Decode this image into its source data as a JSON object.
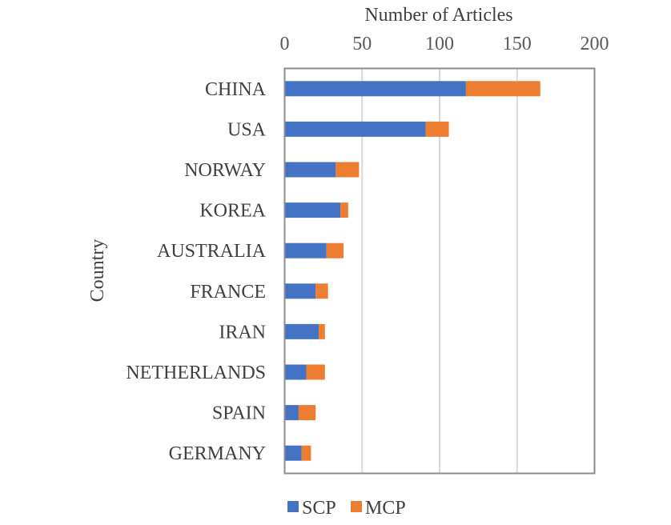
{
  "chart_data": {
    "type": "bar",
    "orientation": "horizontal",
    "stacked": true,
    "categories": [
      "CHINA",
      "USA",
      "NORWAY",
      "KOREA",
      "AUSTRALIA",
      "FRANCE",
      "IRAN",
      "NETHERLANDS",
      "SPAIN",
      "GERMANY"
    ],
    "series": [
      {
        "name": "SCP",
        "color": "#4472C4",
        "values": [
          117,
          91,
          33,
          36,
          27,
          20,
          22,
          14,
          9,
          11
        ]
      },
      {
        "name": "MCP",
        "color": "#ED7D31",
        "values": [
          48,
          15,
          15,
          5,
          11,
          8,
          4,
          12,
          11,
          6
        ]
      }
    ],
    "xlabel": "Number of Articles",
    "ylabel": "Country",
    "xlim": [
      0,
      200
    ],
    "xticks": [
      "0",
      "50",
      "100",
      "150",
      "200"
    ],
    "x_axis_position": "top",
    "grid": true,
    "legend_position": "bottom"
  }
}
